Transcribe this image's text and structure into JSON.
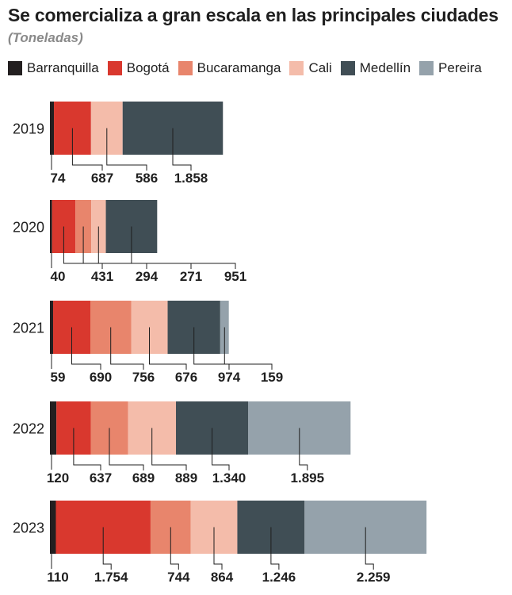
{
  "title": "Se comercializa a gran escala en las principales ciudades",
  "subtitle": "(Toneladas)",
  "chart_data": {
    "type": "bar",
    "orientation": "horizontal",
    "stacked": true,
    "categories": [
      "2019",
      "2020",
      "2021",
      "2022",
      "2023"
    ],
    "series": [
      {
        "name": "Barranquilla",
        "color": "#231f20",
        "values": [
          74,
          40,
          59,
          120,
          110
        ],
        "labels": [
          "74",
          "40",
          "59",
          "120",
          "110"
        ]
      },
      {
        "name": "Bogotá",
        "color": "#d9382e",
        "values": [
          687,
          431,
          690,
          637,
          1754
        ],
        "labels": [
          "687",
          "431",
          "690",
          "637",
          "1.754"
        ]
      },
      {
        "name": "Bucaramanga",
        "color": "#e8856c",
        "values": [
          0,
          294,
          756,
          689,
          744
        ],
        "labels": [
          "",
          "294",
          "756",
          "689",
          "744"
        ]
      },
      {
        "name": "Cali",
        "color": "#f4bcaa",
        "values": [
          586,
          271,
          676,
          889,
          864
        ],
        "labels": [
          "586",
          "271",
          "676",
          "889",
          "864"
        ]
      },
      {
        "name": "Medellín",
        "color": "#404e55",
        "values": [
          1858,
          951,
          974,
          1340,
          1246
        ],
        "labels": [
          "1.858",
          "951",
          "974",
          "1.340",
          "1.246"
        ]
      },
      {
        "name": "Pereira",
        "color": "#95a2ab",
        "values": [
          0,
          0,
          159,
          1895,
          2259
        ],
        "labels": [
          "",
          "",
          "159",
          "1.895",
          "2.259"
        ]
      }
    ],
    "xlabel": "",
    "ylabel": "",
    "legend_position": "top",
    "grid": false
  }
}
